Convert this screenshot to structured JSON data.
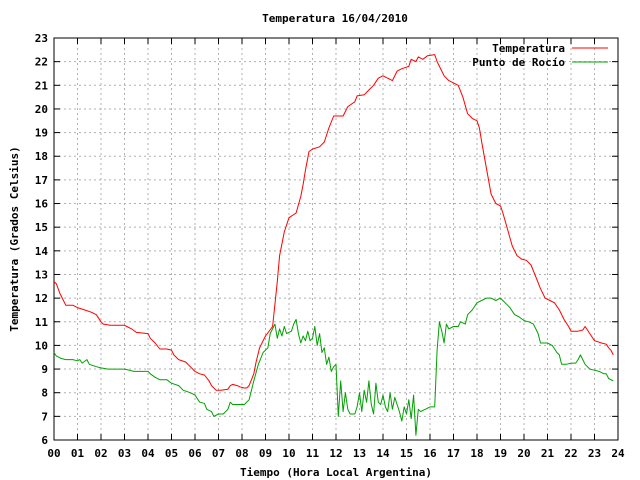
{
  "chart_data": {
    "type": "line",
    "title": "Temperatura 16/04/2010",
    "xlabel": "Tiempo (Hora Local Argentina)",
    "ylabel": "Temperatura (Grados Celsius)",
    "xlim": [
      0,
      24
    ],
    "ylim": [
      6,
      23
    ],
    "x_ticks": [
      "00",
      "01",
      "02",
      "03",
      "04",
      "05",
      "06",
      "07",
      "08",
      "09",
      "10",
      "11",
      "12",
      "13",
      "14",
      "15",
      "16",
      "17",
      "18",
      "19",
      "20",
      "21",
      "22",
      "23",
      "24"
    ],
    "y_ticks": [
      6,
      7,
      8,
      9,
      10,
      11,
      12,
      13,
      14,
      15,
      16,
      17,
      18,
      19,
      20,
      21,
      22,
      23
    ],
    "grid": true,
    "legend_position": "top-right",
    "series": [
      {
        "name": "Temperatura",
        "color": "#ff0000",
        "points": [
          [
            0.0,
            12.7
          ],
          [
            0.1,
            12.6
          ],
          [
            0.25,
            12.2
          ],
          [
            0.4,
            11.9
          ],
          [
            0.5,
            11.7
          ],
          [
            0.8,
            11.7
          ],
          [
            1.0,
            11.6
          ],
          [
            1.3,
            11.5
          ],
          [
            1.6,
            11.4
          ],
          [
            1.8,
            11.3
          ],
          [
            2.0,
            11.0
          ],
          [
            2.1,
            10.9
          ],
          [
            2.4,
            10.85
          ],
          [
            3.0,
            10.85
          ],
          [
            3.1,
            10.8
          ],
          [
            3.3,
            10.7
          ],
          [
            3.5,
            10.55
          ],
          [
            4.0,
            10.5
          ],
          [
            4.1,
            10.3
          ],
          [
            4.3,
            10.1
          ],
          [
            4.5,
            9.85
          ],
          [
            4.8,
            9.85
          ],
          [
            5.0,
            9.8
          ],
          [
            5.1,
            9.6
          ],
          [
            5.3,
            9.4
          ],
          [
            5.6,
            9.3
          ],
          [
            5.8,
            9.1
          ],
          [
            6.0,
            8.9
          ],
          [
            6.2,
            8.8
          ],
          [
            6.4,
            8.75
          ],
          [
            6.6,
            8.5
          ],
          [
            6.7,
            8.3
          ],
          [
            6.9,
            8.1
          ],
          [
            7.1,
            8.1
          ],
          [
            7.4,
            8.15
          ],
          [
            7.5,
            8.3
          ],
          [
            7.6,
            8.35
          ],
          [
            7.8,
            8.3
          ],
          [
            7.9,
            8.25
          ],
          [
            8.1,
            8.2
          ],
          [
            8.2,
            8.2
          ],
          [
            8.3,
            8.3
          ],
          [
            8.5,
            8.8
          ],
          [
            8.6,
            9.3
          ],
          [
            8.75,
            9.9
          ],
          [
            9.0,
            10.4
          ],
          [
            9.3,
            10.8
          ],
          [
            9.5,
            12.7
          ],
          [
            9.6,
            13.8
          ],
          [
            9.8,
            14.8
          ],
          [
            10.0,
            15.4
          ],
          [
            10.3,
            15.6
          ],
          [
            10.5,
            16.3
          ],
          [
            10.6,
            16.8
          ],
          [
            10.7,
            17.4
          ],
          [
            10.85,
            18.2
          ],
          [
            11.0,
            18.3
          ],
          [
            11.3,
            18.4
          ],
          [
            11.5,
            18.6
          ],
          [
            11.7,
            19.2
          ],
          [
            11.9,
            19.7
          ],
          [
            12.3,
            19.7
          ],
          [
            12.5,
            20.1
          ],
          [
            12.8,
            20.3
          ],
          [
            12.9,
            20.55
          ],
          [
            13.2,
            20.6
          ],
          [
            13.4,
            20.8
          ],
          [
            13.6,
            21.0
          ],
          [
            13.8,
            21.3
          ],
          [
            14.0,
            21.4
          ],
          [
            14.2,
            21.3
          ],
          [
            14.4,
            21.2
          ],
          [
            14.6,
            21.6
          ],
          [
            14.8,
            21.7
          ],
          [
            15.1,
            21.8
          ],
          [
            15.2,
            22.1
          ],
          [
            15.4,
            22.0
          ],
          [
            15.5,
            22.2
          ],
          [
            15.7,
            22.1
          ],
          [
            15.9,
            22.25
          ],
          [
            16.2,
            22.3
          ],
          [
            16.3,
            22.0
          ],
          [
            16.5,
            21.6
          ],
          [
            16.6,
            21.4
          ],
          [
            16.8,
            21.2
          ],
          [
            17.0,
            21.1
          ],
          [
            17.2,
            21.0
          ],
          [
            17.4,
            20.5
          ],
          [
            17.6,
            19.8
          ],
          [
            17.8,
            19.6
          ],
          [
            18.0,
            19.5
          ],
          [
            18.1,
            19.2
          ],
          [
            18.2,
            18.6
          ],
          [
            18.4,
            17.5
          ],
          [
            18.6,
            16.4
          ],
          [
            18.8,
            16.0
          ],
          [
            19.0,
            15.9
          ],
          [
            19.1,
            15.6
          ],
          [
            19.3,
            14.9
          ],
          [
            19.5,
            14.2
          ],
          [
            19.7,
            13.8
          ],
          [
            19.9,
            13.65
          ],
          [
            20.1,
            13.6
          ],
          [
            20.3,
            13.4
          ],
          [
            20.5,
            12.9
          ],
          [
            20.7,
            12.4
          ],
          [
            20.9,
            12.0
          ],
          [
            21.1,
            11.9
          ],
          [
            21.3,
            11.8
          ],
          [
            21.5,
            11.5
          ],
          [
            21.7,
            11.1
          ],
          [
            21.9,
            10.8
          ],
          [
            22.0,
            10.6
          ],
          [
            22.3,
            10.6
          ],
          [
            22.5,
            10.65
          ],
          [
            22.6,
            10.8
          ],
          [
            22.8,
            10.5
          ],
          [
            23.0,
            10.2
          ],
          [
            23.3,
            10.1
          ],
          [
            23.5,
            10.05
          ],
          [
            23.6,
            9.9
          ],
          [
            23.7,
            9.8
          ],
          [
            23.8,
            9.6
          ]
        ]
      },
      {
        "name": "Punto de Rocío",
        "color": "#00a000",
        "points": [
          [
            0.0,
            9.7
          ],
          [
            0.1,
            9.55
          ],
          [
            0.2,
            9.5
          ],
          [
            0.3,
            9.45
          ],
          [
            0.5,
            9.4
          ],
          [
            0.8,
            9.4
          ],
          [
            1.0,
            9.35
          ],
          [
            1.1,
            9.4
          ],
          [
            1.2,
            9.25
          ],
          [
            1.4,
            9.4
          ],
          [
            1.5,
            9.2
          ],
          [
            1.8,
            9.1
          ],
          [
            2.0,
            9.05
          ],
          [
            2.3,
            9.0
          ],
          [
            2.6,
            9.0
          ],
          [
            3.0,
            9.0
          ],
          [
            3.2,
            8.95
          ],
          [
            3.4,
            8.9
          ],
          [
            4.0,
            8.9
          ],
          [
            4.1,
            8.8
          ],
          [
            4.3,
            8.65
          ],
          [
            4.5,
            8.55
          ],
          [
            4.8,
            8.55
          ],
          [
            5.0,
            8.4
          ],
          [
            5.3,
            8.3
          ],
          [
            5.5,
            8.1
          ],
          [
            5.8,
            8.0
          ],
          [
            6.0,
            7.9
          ],
          [
            6.2,
            7.6
          ],
          [
            6.4,
            7.55
          ],
          [
            6.5,
            7.3
          ],
          [
            6.7,
            7.2
          ],
          [
            6.8,
            7.0
          ],
          [
            7.0,
            7.1
          ],
          [
            7.2,
            7.1
          ],
          [
            7.4,
            7.3
          ],
          [
            7.5,
            7.6
          ],
          [
            7.6,
            7.5
          ],
          [
            7.8,
            7.5
          ],
          [
            8.0,
            7.5
          ],
          [
            8.1,
            7.5
          ],
          [
            8.3,
            7.7
          ],
          [
            8.5,
            8.5
          ],
          [
            8.7,
            9.2
          ],
          [
            8.9,
            9.7
          ],
          [
            9.1,
            9.9
          ],
          [
            9.2,
            10.5
          ],
          [
            9.4,
            10.9
          ],
          [
            9.5,
            10.3
          ],
          [
            9.6,
            10.7
          ],
          [
            9.7,
            10.4
          ],
          [
            9.8,
            10.8
          ],
          [
            9.9,
            10.5
          ],
          [
            10.1,
            10.6
          ],
          [
            10.2,
            10.9
          ],
          [
            10.3,
            11.1
          ],
          [
            10.4,
            10.5
          ],
          [
            10.5,
            10.1
          ],
          [
            10.6,
            10.4
          ],
          [
            10.7,
            10.2
          ],
          [
            10.8,
            10.6
          ],
          [
            10.9,
            10.2
          ],
          [
            11.0,
            10.3
          ],
          [
            11.1,
            10.8
          ],
          [
            11.2,
            10.0
          ],
          [
            11.3,
            10.5
          ],
          [
            11.4,
            9.7
          ],
          [
            11.5,
            9.9
          ],
          [
            11.6,
            9.2
          ],
          [
            11.7,
            9.5
          ],
          [
            11.8,
            8.9
          ],
          [
            11.9,
            9.1
          ],
          [
            12.0,
            9.2
          ],
          [
            12.1,
            7.0
          ],
          [
            12.2,
            8.5
          ],
          [
            12.3,
            7.2
          ],
          [
            12.4,
            8.0
          ],
          [
            12.5,
            7.3
          ],
          [
            12.6,
            7.1
          ],
          [
            12.8,
            7.1
          ],
          [
            12.9,
            7.4
          ],
          [
            13.0,
            8.0
          ],
          [
            13.1,
            7.2
          ],
          [
            13.2,
            8.1
          ],
          [
            13.3,
            7.6
          ],
          [
            13.4,
            8.5
          ],
          [
            13.5,
            7.5
          ],
          [
            13.6,
            7.1
          ],
          [
            13.7,
            8.4
          ],
          [
            13.8,
            7.6
          ],
          [
            13.9,
            7.5
          ],
          [
            14.0,
            7.9
          ],
          [
            14.1,
            7.4
          ],
          [
            14.2,
            7.2
          ],
          [
            14.3,
            8.0
          ],
          [
            14.4,
            7.3
          ],
          [
            14.5,
            7.8
          ],
          [
            14.6,
            7.5
          ],
          [
            14.7,
            7.2
          ],
          [
            14.8,
            6.8
          ],
          [
            14.9,
            7.4
          ],
          [
            15.0,
            7.1
          ],
          [
            15.1,
            7.7
          ],
          [
            15.2,
            6.9
          ],
          [
            15.3,
            7.9
          ],
          [
            15.4,
            6.2
          ],
          [
            15.5,
            7.3
          ],
          [
            15.6,
            7.2
          ],
          [
            15.8,
            7.3
          ],
          [
            16.0,
            7.4
          ],
          [
            16.2,
            7.4
          ],
          [
            16.3,
            9.8
          ],
          [
            16.4,
            11.0
          ],
          [
            16.5,
            10.6
          ],
          [
            16.6,
            10.1
          ],
          [
            16.7,
            10.9
          ],
          [
            16.8,
            10.7
          ],
          [
            17.0,
            10.8
          ],
          [
            17.2,
            10.8
          ],
          [
            17.3,
            11.0
          ],
          [
            17.5,
            10.9
          ],
          [
            17.6,
            11.3
          ],
          [
            17.8,
            11.5
          ],
          [
            18.0,
            11.8
          ],
          [
            18.2,
            11.9
          ],
          [
            18.4,
            12.0
          ],
          [
            18.6,
            12.0
          ],
          [
            18.8,
            11.9
          ],
          [
            19.0,
            12.0
          ],
          [
            19.2,
            11.8
          ],
          [
            19.4,
            11.6
          ],
          [
            19.6,
            11.3
          ],
          [
            19.8,
            11.2
          ],
          [
            20.0,
            11.05
          ],
          [
            20.2,
            11.0
          ],
          [
            20.4,
            10.9
          ],
          [
            20.5,
            10.7
          ],
          [
            20.6,
            10.5
          ],
          [
            20.7,
            10.1
          ],
          [
            21.0,
            10.1
          ],
          [
            21.2,
            10.0
          ],
          [
            21.4,
            9.7
          ],
          [
            21.5,
            9.6
          ],
          [
            21.6,
            9.2
          ],
          [
            21.8,
            9.2
          ],
          [
            22.0,
            9.25
          ],
          [
            22.2,
            9.25
          ],
          [
            22.3,
            9.4
          ],
          [
            22.4,
            9.6
          ],
          [
            22.6,
            9.2
          ],
          [
            22.8,
            9.0
          ],
          [
            23.0,
            8.95
          ],
          [
            23.2,
            8.9
          ],
          [
            23.3,
            8.85
          ],
          [
            23.4,
            8.8
          ],
          [
            23.5,
            8.8
          ],
          [
            23.6,
            8.6
          ],
          [
            23.8,
            8.5
          ]
        ]
      }
    ]
  }
}
